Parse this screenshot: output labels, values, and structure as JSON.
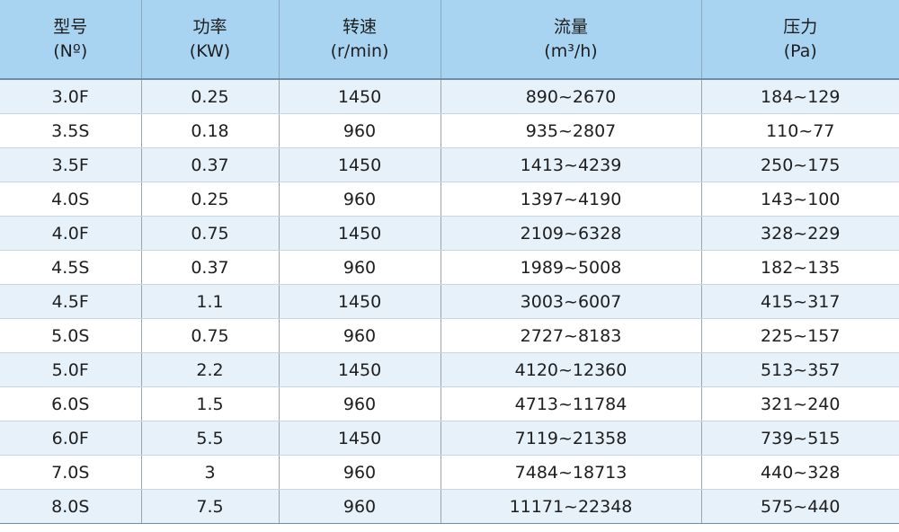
{
  "table": {
    "header": [
      {
        "name": "型号",
        "unit": "(Nº)"
      },
      {
        "name": "功率",
        "unit": "(KW)"
      },
      {
        "name": "转速",
        "unit": "(r/min)"
      },
      {
        "name": "流量",
        "unit": "(m³/h)"
      },
      {
        "name": "压力",
        "unit": "(Pa)"
      }
    ],
    "rows": [
      [
        "3.0F",
        "0.25",
        "1450",
        "890~2670",
        "184~129"
      ],
      [
        "3.5S",
        "0.18",
        "960",
        "935~2807",
        "110~77"
      ],
      [
        "3.5F",
        "0.37",
        "1450",
        "1413~4239",
        "250~175"
      ],
      [
        "4.0S",
        "0.25",
        "960",
        "1397~4190",
        "143~100"
      ],
      [
        "4.0F",
        "0.75",
        "1450",
        "2109~6328",
        "328~229"
      ],
      [
        "4.5S",
        "0.37",
        "960",
        "1989~5008",
        "182~135"
      ],
      [
        "4.5F",
        "1.1",
        "1450",
        "3003~6007",
        "415~317"
      ],
      [
        "5.0S",
        "0.75",
        "960",
        "2727~8183",
        "225~157"
      ],
      [
        "5.0F",
        "2.2",
        "1450",
        "4120~12360",
        "513~357"
      ],
      [
        "6.0S",
        "1.5",
        "960",
        "4713~11784",
        "321~240"
      ],
      [
        "6.0F",
        "5.5",
        "1450",
        "7119~21358",
        "739~515"
      ],
      [
        "7.0S",
        "3",
        "960",
        "7484~18713",
        "440~328"
      ],
      [
        "8.0S",
        "7.5",
        "960",
        "11171~22348",
        "575~440"
      ]
    ]
  }
}
